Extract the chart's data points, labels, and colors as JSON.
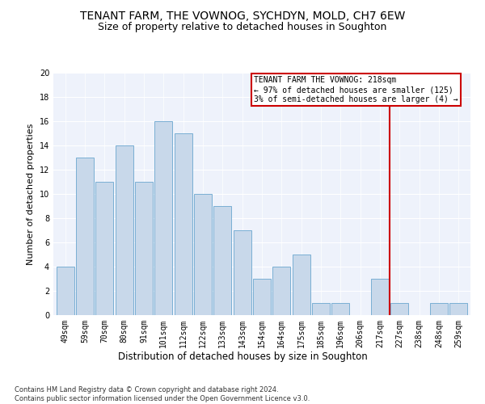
{
  "title": "TENANT FARM, THE VOWNOG, SYCHDYN, MOLD, CH7 6EW",
  "subtitle": "Size of property relative to detached houses in Soughton",
  "xlabel": "Distribution of detached houses by size in Soughton",
  "ylabel": "Number of detached properties",
  "categories": [
    "49sqm",
    "59sqm",
    "70sqm",
    "80sqm",
    "91sqm",
    "101sqm",
    "112sqm",
    "122sqm",
    "133sqm",
    "143sqm",
    "154sqm",
    "164sqm",
    "175sqm",
    "185sqm",
    "196sqm",
    "206sqm",
    "217sqm",
    "227sqm",
    "238sqm",
    "248sqm",
    "259sqm"
  ],
  "values": [
    4,
    13,
    11,
    14,
    11,
    16,
    15,
    10,
    9,
    7,
    3,
    4,
    5,
    1,
    1,
    0,
    3,
    1,
    0,
    1,
    1
  ],
  "bar_color": "#c8d8ea",
  "bar_edgecolor": "#7aafd4",
  "redline_color": "#cc0000",
  "annotation_text": "TENANT FARM THE VOWNOG: 218sqm\n← 97% of detached houses are smaller (125)\n3% of semi-detached houses are larger (4) →",
  "annotation_box_color": "#cc0000",
  "ylim": [
    0,
    20
  ],
  "yticks": [
    0,
    2,
    4,
    6,
    8,
    10,
    12,
    14,
    16,
    18,
    20
  ],
  "background_color": "#eef2fb",
  "footer_text": "Contains HM Land Registry data © Crown copyright and database right 2024.\nContains public sector information licensed under the Open Government Licence v3.0.",
  "title_fontsize": 10,
  "subtitle_fontsize": 9,
  "xlabel_fontsize": 8.5,
  "ylabel_fontsize": 8,
  "tick_fontsize": 7,
  "footer_fontsize": 6
}
